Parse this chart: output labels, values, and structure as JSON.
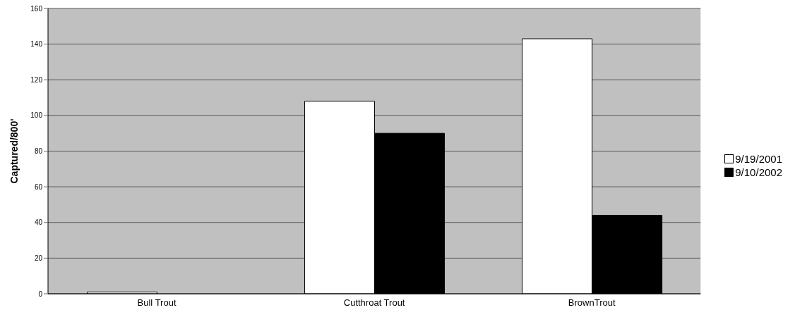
{
  "chart_data": {
    "type": "bar",
    "ylabel": "Captured/800'",
    "categories": [
      "Bull Trout",
      "Cutthroat Trout",
      "BrownTrout"
    ],
    "series": [
      {
        "name": "9/19/2001",
        "color": "#ffffff",
        "values": [
          1,
          108,
          143
        ]
      },
      {
        "name": "9/10/2002",
        "color": "#000000",
        "values": [
          0,
          90,
          44
        ]
      }
    ],
    "ylim": [
      0,
      160
    ],
    "yticks": [
      0,
      20,
      40,
      60,
      80,
      100,
      120,
      140,
      160
    ],
    "grid": "y",
    "legend": "right"
  }
}
